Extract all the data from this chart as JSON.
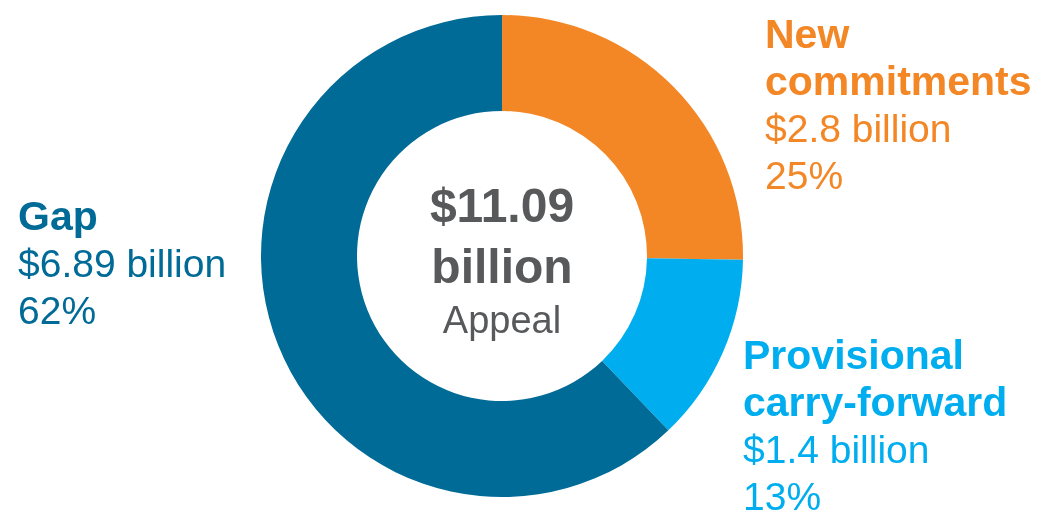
{
  "chart_data": {
    "type": "donut",
    "categories": [
      "New commitments",
      "Provisional carry-forward",
      "Gap"
    ],
    "values": [
      2.8,
      1.4,
      6.89
    ],
    "colors": [
      "#f38625",
      "#00aeef",
      "#006b96"
    ],
    "value_labels": [
      "$2.8 billion",
      "$1.4 billion",
      "$6.89 billion"
    ],
    "annotations": [
      "$11.09 billion",
      "Appeal",
      {
        "text": "25%",
        "x": "New commitments"
      },
      {
        "text": "13%",
        "x": "Provisional carry-forward"
      },
      {
        "text": "62%",
        "x": "Gap"
      }
    ]
  }
}
